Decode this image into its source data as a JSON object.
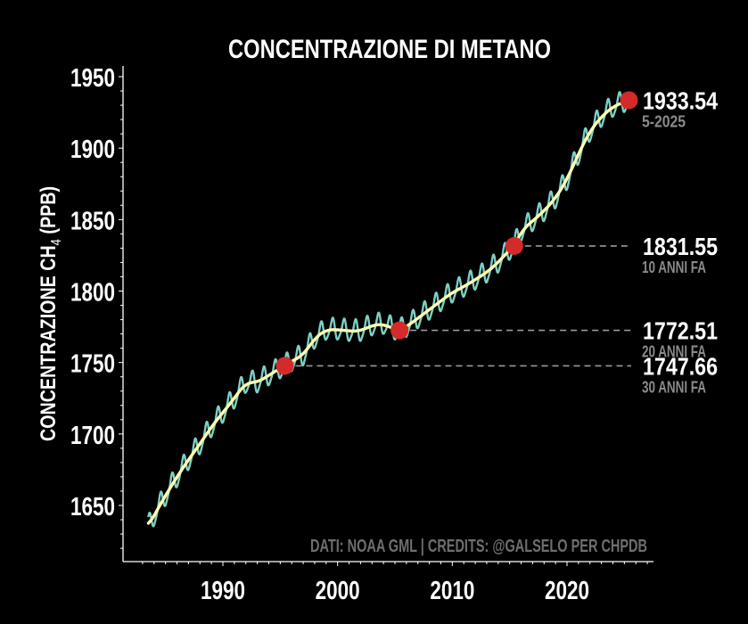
{
  "chart_data": {
    "type": "line",
    "title": "CONCENTRAZIONE DI METANO",
    "xlabel": "",
    "ylabel_main": "CONCENTRAZIONE CH",
    "ylabel_sub": "4",
    "ylabel_tail": " (PPB)",
    "xlim": [
      1982.3,
      2028.6
    ],
    "ylim": [
      1610,
      1957
    ],
    "xticks": [
      1990,
      2000,
      2010,
      2020
    ],
    "xtick_labels": [
      "1990",
      "2000",
      "2010",
      "2020"
    ],
    "yticks": [
      1650,
      1700,
      1750,
      1800,
      1850,
      1900,
      1950
    ],
    "ytick_labels": [
      "1650",
      "1700",
      "1750",
      "1800",
      "1850",
      "1900",
      "1950"
    ],
    "grid": false,
    "colors": {
      "background": "#000000",
      "monthly": "#7ecfc4",
      "trend": "#fffcb0",
      "marker": "#d42a2a",
      "reference_line": "#9a9a9a",
      "text": "#ffffff",
      "subtext": "#8a8a8a"
    },
    "series": [
      {
        "name": "trend",
        "x": [
          1983.5,
          1984,
          1985,
          1986,
          1987,
          1988,
          1989,
          1990,
          1991,
          1992,
          1993,
          1994,
          1995,
          1995.4,
          1996,
          1997,
          1998,
          1999,
          2000,
          2001,
          2002,
          2003,
          2004,
          2005,
          2005.4,
          2006,
          2007,
          2008,
          2009,
          2010,
          2011,
          2012,
          2013,
          2014,
          2015,
          2015.4,
          2016,
          2017,
          2018,
          2019,
          2020,
          2021,
          2022,
          2023,
          2024,
          2025.4
        ],
        "values": [
          1635,
          1643,
          1657,
          1670,
          1682,
          1693,
          1705,
          1715,
          1725,
          1736,
          1736,
          1741,
          1746,
          1747.66,
          1751,
          1755,
          1767,
          1773,
          1773,
          1772,
          1772,
          1776,
          1777,
          1773,
          1772.51,
          1775,
          1781,
          1787,
          1793,
          1799,
          1803,
          1808,
          1813,
          1820,
          1829,
          1831.55,
          1842,
          1849,
          1856,
          1865,
          1878,
          1896,
          1912,
          1922,
          1929,
          1933.54
        ]
      },
      {
        "name": "monthly",
        "seasonal_amplitude_ppb": 8,
        "note": "trend plus seasonal cycle"
      }
    ],
    "highlights": [
      {
        "x": 2025.4,
        "value": 1933.54,
        "label": "1933.54",
        "sublabel": "5-2025",
        "reference_line": false
      },
      {
        "x": 2015.4,
        "value": 1831.55,
        "label": "1831.55",
        "sublabel": "10 ANNI FA",
        "reference_line": true
      },
      {
        "x": 2005.4,
        "value": 1772.51,
        "label": "1772.51",
        "sublabel": "20 ANNI FA",
        "reference_line": true
      },
      {
        "x": 1995.4,
        "value": 1747.66,
        "label": "1747.66",
        "sublabel": "30 ANNI FA",
        "reference_line": true
      }
    ],
    "annotation": "DATI: NOAA GML | CREDITS: @GALSELO PER CHPDB"
  }
}
